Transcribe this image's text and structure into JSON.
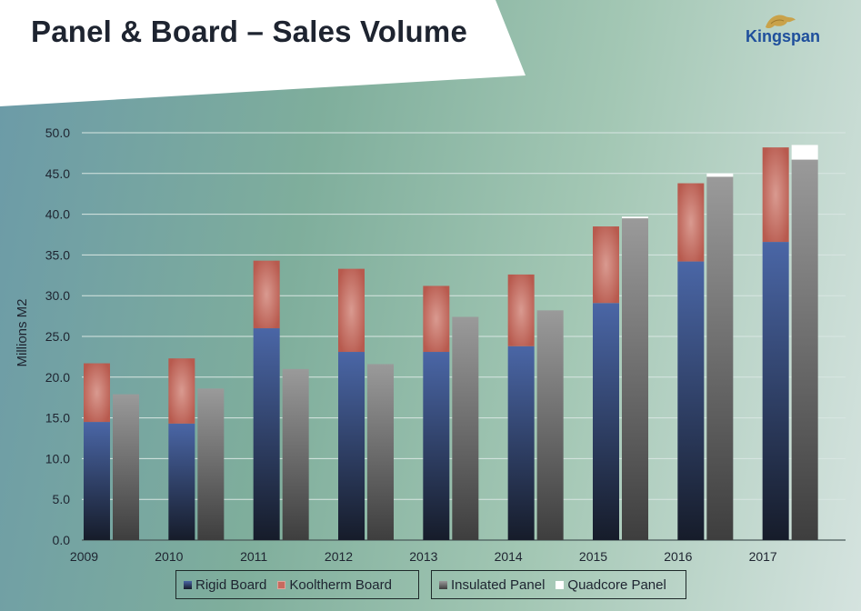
{
  "header": {
    "title": "Panel & Board – Sales Volume",
    "logo_text": "Kingspan"
  },
  "chart_data": {
    "type": "bar",
    "categories": [
      "2009",
      "2010",
      "2011",
      "2012",
      "2013",
      "2014",
      "2015",
      "2016",
      "2017"
    ],
    "ylabel": "Millions M2",
    "ylim": [
      0,
      50
    ],
    "yticks": [
      "0.0",
      "5.0",
      "10.0",
      "15.0",
      "20.0",
      "25.0",
      "30.0",
      "35.0",
      "40.0",
      "45.0",
      "50.0"
    ],
    "grid": true,
    "legend_position": "bottom",
    "stacks": [
      {
        "stack": "board",
        "series": [
          {
            "name": "Rigid Board",
            "color": "#3f5a96",
            "values": [
              14.5,
              14.3,
              26.0,
              23.1,
              23.1,
              23.8,
              29.1,
              34.2,
              36.6
            ]
          },
          {
            "name": "Kooltherm Board",
            "color": "#c76a5e",
            "values": [
              7.2,
              8.0,
              8.3,
              10.2,
              8.1,
              8.8,
              9.4,
              9.6,
              11.6
            ]
          }
        ]
      },
      {
        "stack": "panel",
        "series": [
          {
            "name": "Insulated Panel",
            "color": "#707070",
            "values": [
              17.9,
              18.6,
              21.0,
              21.6,
              27.4,
              28.2,
              39.5,
              44.6,
              46.7
            ]
          },
          {
            "name": "Quadcore Panel",
            "color": "#ffffff",
            "values": [
              0,
              0,
              0,
              0,
              0,
              0,
              0.2,
              0.4,
              1.8
            ]
          }
        ]
      }
    ]
  }
}
